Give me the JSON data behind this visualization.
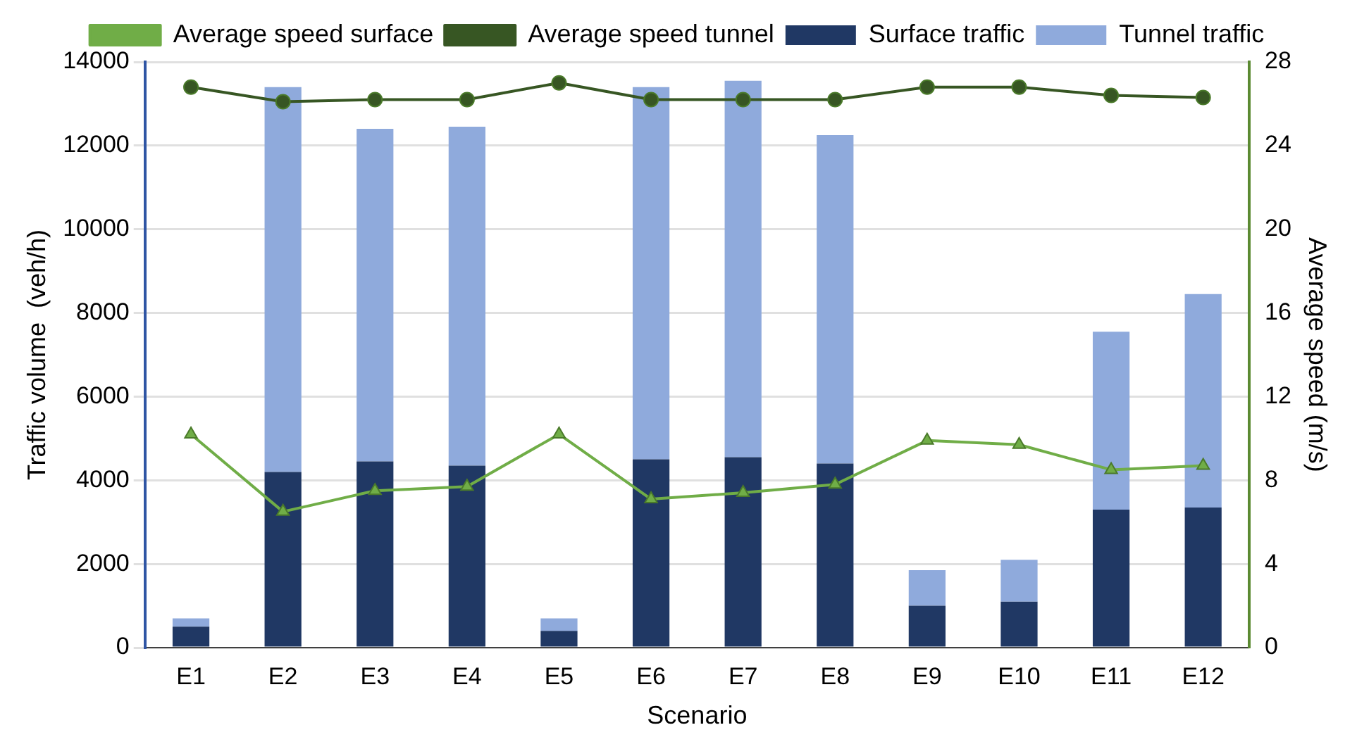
{
  "chart_data": {
    "type": "bar",
    "stacked": true,
    "xlabel": "Scenario",
    "ylabel": "Traffic volume  (veh/h)",
    "y2label": "Average speed (m/s)",
    "categories": [
      "E1",
      "E2",
      "E3",
      "E4",
      "E5",
      "E6",
      "E7",
      "E8",
      "E9",
      "E10",
      "E11",
      "E12"
    ],
    "series": [
      {
        "name": "Surface traffic",
        "color": "#203864",
        "values": [
          500,
          4200,
          4450,
          4350,
          400,
          4500,
          4550,
          4400,
          1000,
          1100,
          3300,
          3350
        ]
      },
      {
        "name": "Tunnel traffic",
        "color": "#8faadc",
        "values": [
          200,
          9200,
          7950,
          8100,
          300,
          8900,
          9000,
          7850,
          850,
          1000,
          4250,
          5100
        ]
      },
      {
        "name": "Average speed surface",
        "type": "line",
        "axis": "y2",
        "marker": "triangle",
        "color": "#70ad47",
        "values": [
          10.2,
          6.5,
          7.5,
          7.7,
          10.2,
          7.1,
          7.4,
          7.8,
          9.9,
          9.7,
          8.5,
          8.7
        ]
      },
      {
        "name": "Average speed tunnel",
        "type": "line",
        "axis": "y2",
        "marker": "circle",
        "color": "#375623",
        "values": [
          26.8,
          26.1,
          26.2,
          26.2,
          27.0,
          26.2,
          26.2,
          26.2,
          26.8,
          26.8,
          26.4,
          26.3
        ]
      }
    ],
    "ylim": [
      0,
      14000
    ],
    "yticks": [
      0,
      2000,
      4000,
      6000,
      8000,
      10000,
      12000,
      14000
    ],
    "y2lim": [
      0,
      28
    ],
    "y2ticks": [
      0,
      4,
      8,
      12,
      16,
      20,
      24,
      28
    ],
    "grid": "y",
    "legend": "top"
  }
}
